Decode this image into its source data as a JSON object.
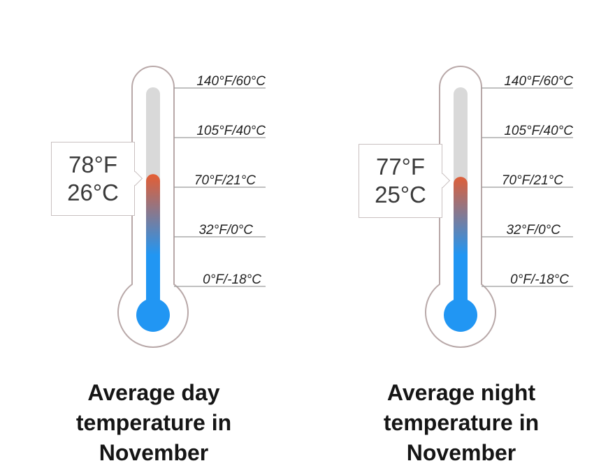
{
  "scale_labels": [
    "140°F/60°C",
    "105°F/40°C",
    "70°F/21°C",
    "32°F/0°C",
    "0°F/-18°C"
  ],
  "thermometers": [
    {
      "readout_f": "78°F",
      "readout_c": "26°C",
      "value_c": 26,
      "caption": [
        "Average day",
        "temperature in",
        "November"
      ]
    },
    {
      "readout_f": "77°F",
      "readout_c": "25°C",
      "value_c": 25,
      "caption": [
        "Average night",
        "temperature in",
        "November"
      ]
    }
  ],
  "colors": {
    "warm": "#f05a28",
    "cold": "#2196f3",
    "empty": "#d9d9d9",
    "outline": "#b8a8a8"
  }
}
